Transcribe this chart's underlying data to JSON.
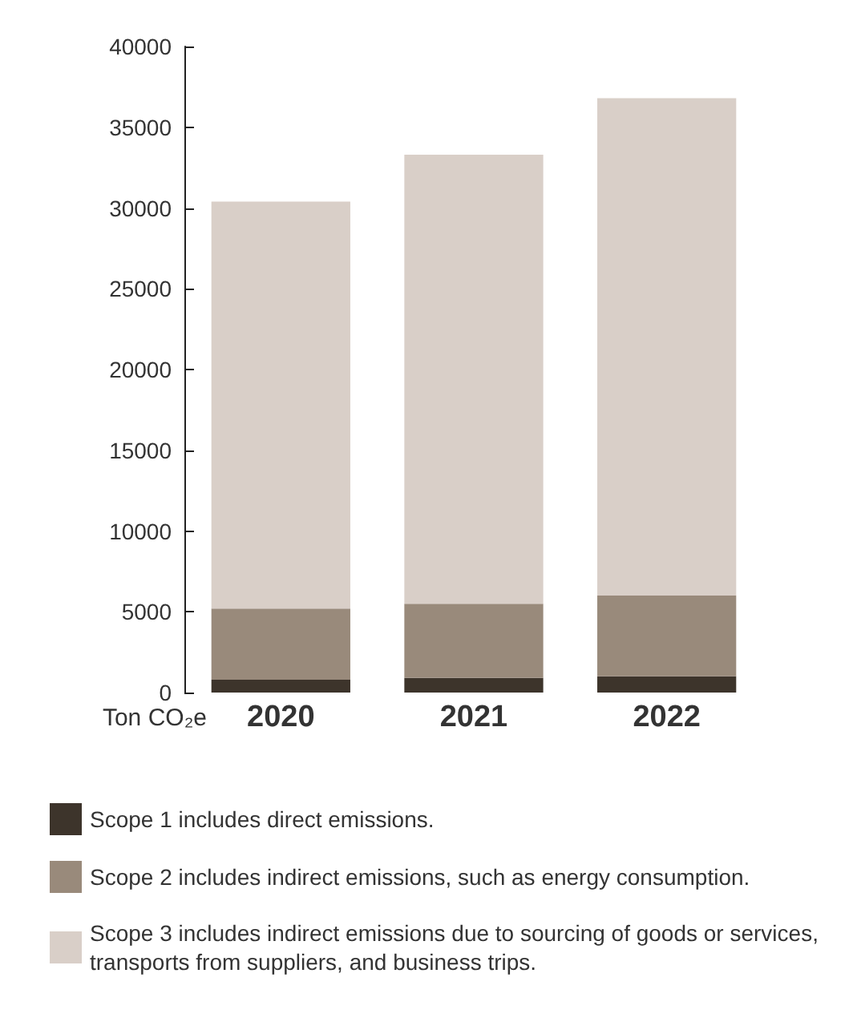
{
  "chart_data": {
    "type": "bar",
    "stacked": true,
    "ylabel": "Ton CO₂e",
    "categories": [
      "2020",
      "2021",
      "2022"
    ],
    "ylim": [
      0,
      40000
    ],
    "yticks": [
      0,
      5000,
      10000,
      15000,
      20000,
      25000,
      30000,
      35000,
      40000
    ],
    "grid": false,
    "legend": "bottom",
    "series": [
      {
        "name": "Scope 1 includes direct emissions.",
        "color": "#3d342b",
        "values": [
          800,
          900,
          1000
        ]
      },
      {
        "name": "Scope 2 includes indirect emissions, such as energy consumption.",
        "color": "#998a7b",
        "values": [
          4400,
          4600,
          5000
        ]
      },
      {
        "name": "Scope 3 includes indirect emissions due to sourcing of goods or services, transports from suppliers, and business trips.",
        "color": "#d9cfc8",
        "values": [
          25200,
          27800,
          30800
        ]
      }
    ]
  }
}
